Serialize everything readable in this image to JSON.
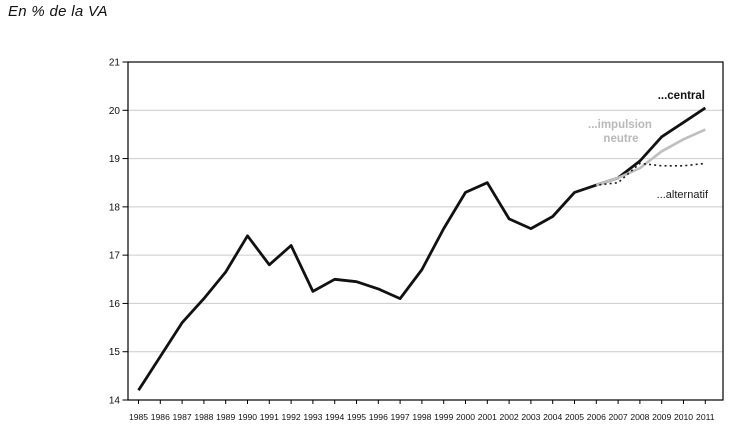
{
  "page": {
    "title": "En %  de la VA"
  },
  "chart_data": {
    "type": "line",
    "title": "En %  de la VA",
    "xlabel": "",
    "ylabel": "",
    "x": [
      1985,
      1986,
      1987,
      1988,
      1989,
      1990,
      1991,
      1992,
      1993,
      1994,
      1995,
      1996,
      1997,
      1998,
      1999,
      2000,
      2001,
      2002,
      2003,
      2004,
      2005,
      2006,
      2007,
      2008,
      2009,
      2010,
      2011
    ],
    "ylim": [
      14,
      21
    ],
    "yticks": [
      14,
      15,
      16,
      17,
      18,
      19,
      20,
      21
    ],
    "grid": "horizontal",
    "grid_color": "#cccccc",
    "axis_color": "#000000",
    "legend_position": "inline-right",
    "series": [
      {
        "name": "...central",
        "color": "#111111",
        "style": "solid",
        "width": 2.8,
        "values": [
          14.2,
          14.9,
          15.6,
          16.1,
          16.65,
          17.4,
          16.8,
          17.2,
          16.25,
          16.5,
          16.45,
          16.3,
          16.1,
          16.7,
          17.55,
          18.3,
          18.5,
          17.75,
          17.55,
          17.8,
          18.3,
          18.45,
          18.6,
          18.95,
          19.45,
          19.75,
          20.05
        ]
      },
      {
        "name": "...impulsion neutre",
        "color": "#bfbfbf",
        "style": "solid",
        "width": 2.6,
        "values": [
          null,
          null,
          null,
          null,
          null,
          null,
          null,
          null,
          null,
          null,
          null,
          null,
          null,
          null,
          null,
          null,
          null,
          null,
          null,
          null,
          null,
          18.45,
          18.6,
          18.8,
          19.15,
          19.4,
          19.6
        ]
      },
      {
        "name": "...alternatif",
        "color": "#1a1a1a",
        "style": "dotted",
        "width": 1.6,
        "values": [
          null,
          null,
          null,
          null,
          null,
          null,
          null,
          null,
          null,
          null,
          null,
          null,
          null,
          null,
          null,
          null,
          null,
          null,
          null,
          null,
          18.3,
          18.45,
          18.5,
          18.9,
          18.85,
          18.85,
          18.9
        ]
      }
    ],
    "annotations": [
      {
        "text": "...central",
        "color": "#111111",
        "bold": true
      },
      {
        "text": "...impulsion",
        "color": "#b9b9b9",
        "bold": true
      },
      {
        "text": "neutre",
        "color": "#b9b9b9",
        "bold": true
      },
      {
        "text": "...alternatif",
        "color": "#1a1a1a",
        "bold": false
      }
    ]
  }
}
